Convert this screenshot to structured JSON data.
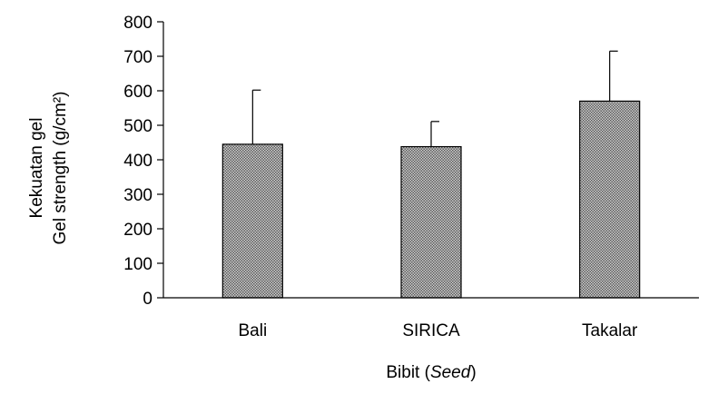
{
  "chart_data": {
    "type": "bar",
    "categories": [
      "Bali",
      "SIRICA",
      "Takalar"
    ],
    "values": [
      445,
      438,
      570
    ],
    "error_upper": [
      157,
      73,
      145
    ],
    "ylim": [
      0,
      800
    ],
    "yticks": [
      0,
      100,
      200,
      300,
      400,
      500,
      600,
      700,
      800
    ],
    "ylabel_line1": "Kekuatan gel",
    "ylabel_line2": "Gel strength (g/cm²)",
    "xlabel_main": "Bibit (",
    "xlabel_italic": "Seed",
    "xlabel_close": ")",
    "bar_color": "#8c8c8c",
    "bar_pattern": "dotted-hatch",
    "grid": false,
    "legend": "none"
  }
}
